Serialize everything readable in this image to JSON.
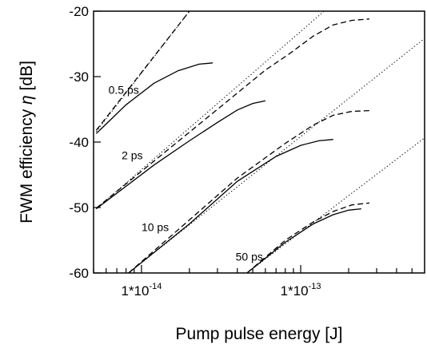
{
  "chart_data": {
    "type": "line",
    "xlabel": "Pump pulse energy [J]",
    "ylabel_prefix": "FWM efficiency ",
    "ylabel_symbol": "η",
    "ylabel_suffix": " [dB]",
    "x_scale": "log",
    "xlim": [
      5e-15,
      6e-13
    ],
    "ylim": [
      -60,
      -20
    ],
    "grid": false,
    "legend": "none",
    "y_ticks": [
      -60,
      -50,
      -40,
      -30,
      -20
    ],
    "x_ticks": [
      {
        "value": 1e-14,
        "base": "1*10",
        "exp": "-14"
      },
      {
        "value": 1e-13,
        "base": "1*10",
        "exp": "-13"
      }
    ],
    "annotations": [
      {
        "text": "0.5 ps",
        "x": 6.2e-15,
        "y": -32
      },
      {
        "text": "2 ps",
        "x": 7.5e-15,
        "y": -42
      },
      {
        "text": "10 ps",
        "x": 1e-14,
        "y": -53
      },
      {
        "text": "50 ps",
        "x": 3.9e-14,
        "y": -57.5
      }
    ],
    "series": [
      {
        "style": "dotted",
        "points": [
          [
            5.2e-15,
            -38.4
          ],
          [
            2e-14,
            -20.0
          ]
        ]
      },
      {
        "style": "dashed",
        "points": [
          [
            5.2e-15,
            -38.2
          ],
          [
            2e-14,
            -20.0
          ]
        ]
      },
      {
        "style": "solid",
        "points": [
          [
            5.2e-15,
            -38.7
          ],
          [
            8e-15,
            -34.3
          ],
          [
            1.2e-14,
            -31.0
          ],
          [
            1.7e-14,
            -29.1
          ],
          [
            2.3e-14,
            -28.1
          ],
          [
            2.8e-14,
            -27.9
          ]
        ]
      },
      {
        "style": "dotted",
        "points": [
          [
            5.2e-15,
            -50.2
          ],
          [
            1.4e-13,
            -20.0
          ]
        ]
      },
      {
        "style": "dashed",
        "points": [
          [
            5.2e-15,
            -50.1
          ],
          [
            3e-14,
            -35.0
          ],
          [
            6e-14,
            -29.0
          ],
          [
            8.5e-14,
            -26.5
          ],
          [
            1.2e-13,
            -23.8
          ],
          [
            1.6e-13,
            -22.1
          ],
          [
            2.1e-13,
            -21.4
          ],
          [
            2.7e-13,
            -21.2
          ]
        ]
      },
      {
        "style": "solid",
        "points": [
          [
            5.2e-15,
            -50.2
          ],
          [
            1.2e-14,
            -43.5
          ],
          [
            2e-14,
            -39.8
          ],
          [
            3e-14,
            -37.0
          ],
          [
            4e-14,
            -35.1
          ],
          [
            5e-14,
            -34.1
          ],
          [
            6e-14,
            -33.7
          ]
        ]
      },
      {
        "style": "dotted",
        "points": [
          [
            8.3e-15,
            -60.0
          ],
          [
            5.9e-13,
            -24.3
          ]
        ]
      },
      {
        "style": "dashed",
        "points": [
          [
            8.3e-15,
            -60.0
          ],
          [
            4e-14,
            -45.5
          ],
          [
            8e-14,
            -40.2
          ],
          [
            1.2e-13,
            -37.4
          ],
          [
            1.6e-13,
            -35.9
          ],
          [
            2.1e-13,
            -35.3
          ],
          [
            2.7e-13,
            -35.2
          ]
        ]
      },
      {
        "style": "solid",
        "points": [
          [
            8.3e-15,
            -60.0
          ],
          [
            2e-14,
            -52.5
          ],
          [
            4e-14,
            -46.0
          ],
          [
            7e-14,
            -42.2
          ],
          [
            1e-13,
            -40.5
          ],
          [
            1.3e-13,
            -39.8
          ],
          [
            1.6e-13,
            -39.6
          ]
        ]
      },
      {
        "style": "dotted",
        "points": [
          [
            4.6e-14,
            -60.0
          ],
          [
            5.9e-13,
            -39.5
          ]
        ]
      },
      {
        "style": "dashed",
        "points": [
          [
            4.6e-14,
            -60.0
          ],
          [
            8e-14,
            -55.0
          ],
          [
            1.2e-13,
            -52.2
          ],
          [
            1.6e-13,
            -50.6
          ],
          [
            2.1e-13,
            -49.6
          ],
          [
            2.7e-13,
            -49.3
          ]
        ]
      },
      {
        "style": "solid",
        "points": [
          [
            4.6e-14,
            -60.0
          ],
          [
            8e-14,
            -55.3
          ],
          [
            1.2e-13,
            -52.5
          ],
          [
            1.6e-13,
            -51.1
          ],
          [
            2e-13,
            -50.4
          ],
          [
            2.4e-13,
            -50.2
          ]
        ]
      }
    ]
  }
}
